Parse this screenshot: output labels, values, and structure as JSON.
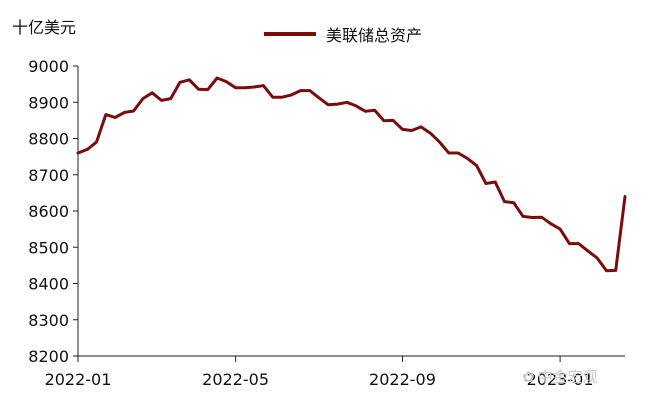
{
  "chart_data": {
    "type": "line",
    "unit_label": "十亿美元",
    "ylim": [
      8200,
      9000
    ],
    "yticks": [
      8200,
      8300,
      8400,
      8500,
      8600,
      8700,
      8800,
      8900,
      9000
    ],
    "xlim": [
      "2022-01-05",
      "2023-02-22"
    ],
    "xticks": [
      {
        "date": "2022-01-05",
        "label": "2022-01"
      },
      {
        "date": "2022-05-04",
        "label": "2022-05"
      },
      {
        "date": "2022-09-07",
        "label": "2022-09"
      },
      {
        "date": "2023-01-04",
        "label": "2023-01"
      }
    ],
    "grid": false,
    "legend_position": "top-center",
    "series": [
      {
        "name": "美联储总资产",
        "color": "#7a0c0c",
        "x": [
          "2022-01-05",
          "2022-01-12",
          "2022-01-19",
          "2022-01-26",
          "2022-02-02",
          "2022-02-09",
          "2022-02-16",
          "2022-02-23",
          "2022-03-02",
          "2022-03-09",
          "2022-03-16",
          "2022-03-23",
          "2022-03-30",
          "2022-04-06",
          "2022-04-13",
          "2022-04-20",
          "2022-04-27",
          "2022-05-04",
          "2022-05-11",
          "2022-05-18",
          "2022-05-25",
          "2022-06-01",
          "2022-06-08",
          "2022-06-15",
          "2022-06-22",
          "2022-06-29",
          "2022-07-06",
          "2022-07-13",
          "2022-07-20",
          "2022-07-27",
          "2022-08-03",
          "2022-08-10",
          "2022-08-17",
          "2022-08-24",
          "2022-08-31",
          "2022-09-07",
          "2022-09-14",
          "2022-09-21",
          "2022-09-28",
          "2022-10-05",
          "2022-10-12",
          "2022-10-19",
          "2022-10-26",
          "2022-11-02",
          "2022-11-09",
          "2022-11-16",
          "2022-11-23",
          "2022-11-30",
          "2022-12-07",
          "2022-12-14",
          "2022-12-21",
          "2022-12-28",
          "2023-01-04",
          "2023-01-11",
          "2023-01-18",
          "2023-01-25",
          "2023-02-01",
          "2023-02-08",
          "2023-02-15",
          "2023-02-22"
        ],
        "values": [
          8760,
          8770,
          8790,
          8866,
          8858,
          8872,
          8876,
          8910,
          8926,
          8905,
          8910,
          8955,
          8962,
          8936,
          8935,
          8967,
          8957,
          8940,
          8940,
          8942,
          8946,
          8914,
          8914,
          8920,
          8932,
          8932,
          8912,
          8893,
          8895,
          8900,
          8890,
          8875,
          8878,
          8849,
          8850,
          8825,
          8822,
          8832,
          8815,
          8790,
          8760,
          8760,
          8745,
          8725,
          8676,
          8680,
          8626,
          8623,
          8585,
          8582,
          8583,
          8565,
          8550,
          8510,
          8510,
          8490,
          8470,
          8435,
          8436,
          8640
        ]
      }
    ]
  },
  "watermark": {
    "icon": "wechat-icon",
    "text": "中金宏观"
  }
}
